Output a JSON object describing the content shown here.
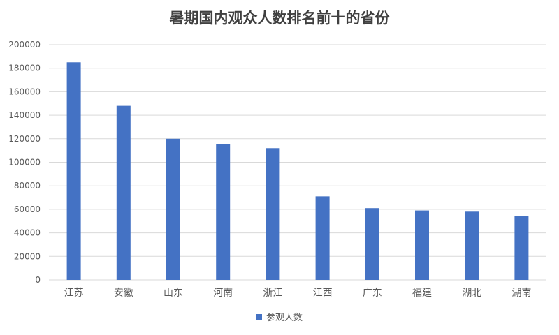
{
  "chart_data": {
    "type": "bar",
    "title": "暑期国内观众人数排名前十的省份",
    "categories": [
      "江苏",
      "安徽",
      "山东",
      "河南",
      "浙江",
      "江西",
      "广东",
      "福建",
      "湖北",
      "湖南"
    ],
    "series": [
      {
        "name": "参观人数",
        "values": [
          185000,
          148000,
          120000,
          115500,
          112000,
          71000,
          61000,
          59000,
          58000,
          54000
        ]
      }
    ],
    "ylim": [
      0,
      200000
    ],
    "yticks": [
      "0",
      "20000",
      "40000",
      "60000",
      "80000",
      "100000",
      "120000",
      "140000",
      "160000",
      "180000",
      "200000"
    ],
    "grid": true,
    "legend_position": "bottom",
    "colors": {
      "bar": "#4472c4",
      "grid": "#d9d9d9",
      "text": "#595959"
    }
  }
}
